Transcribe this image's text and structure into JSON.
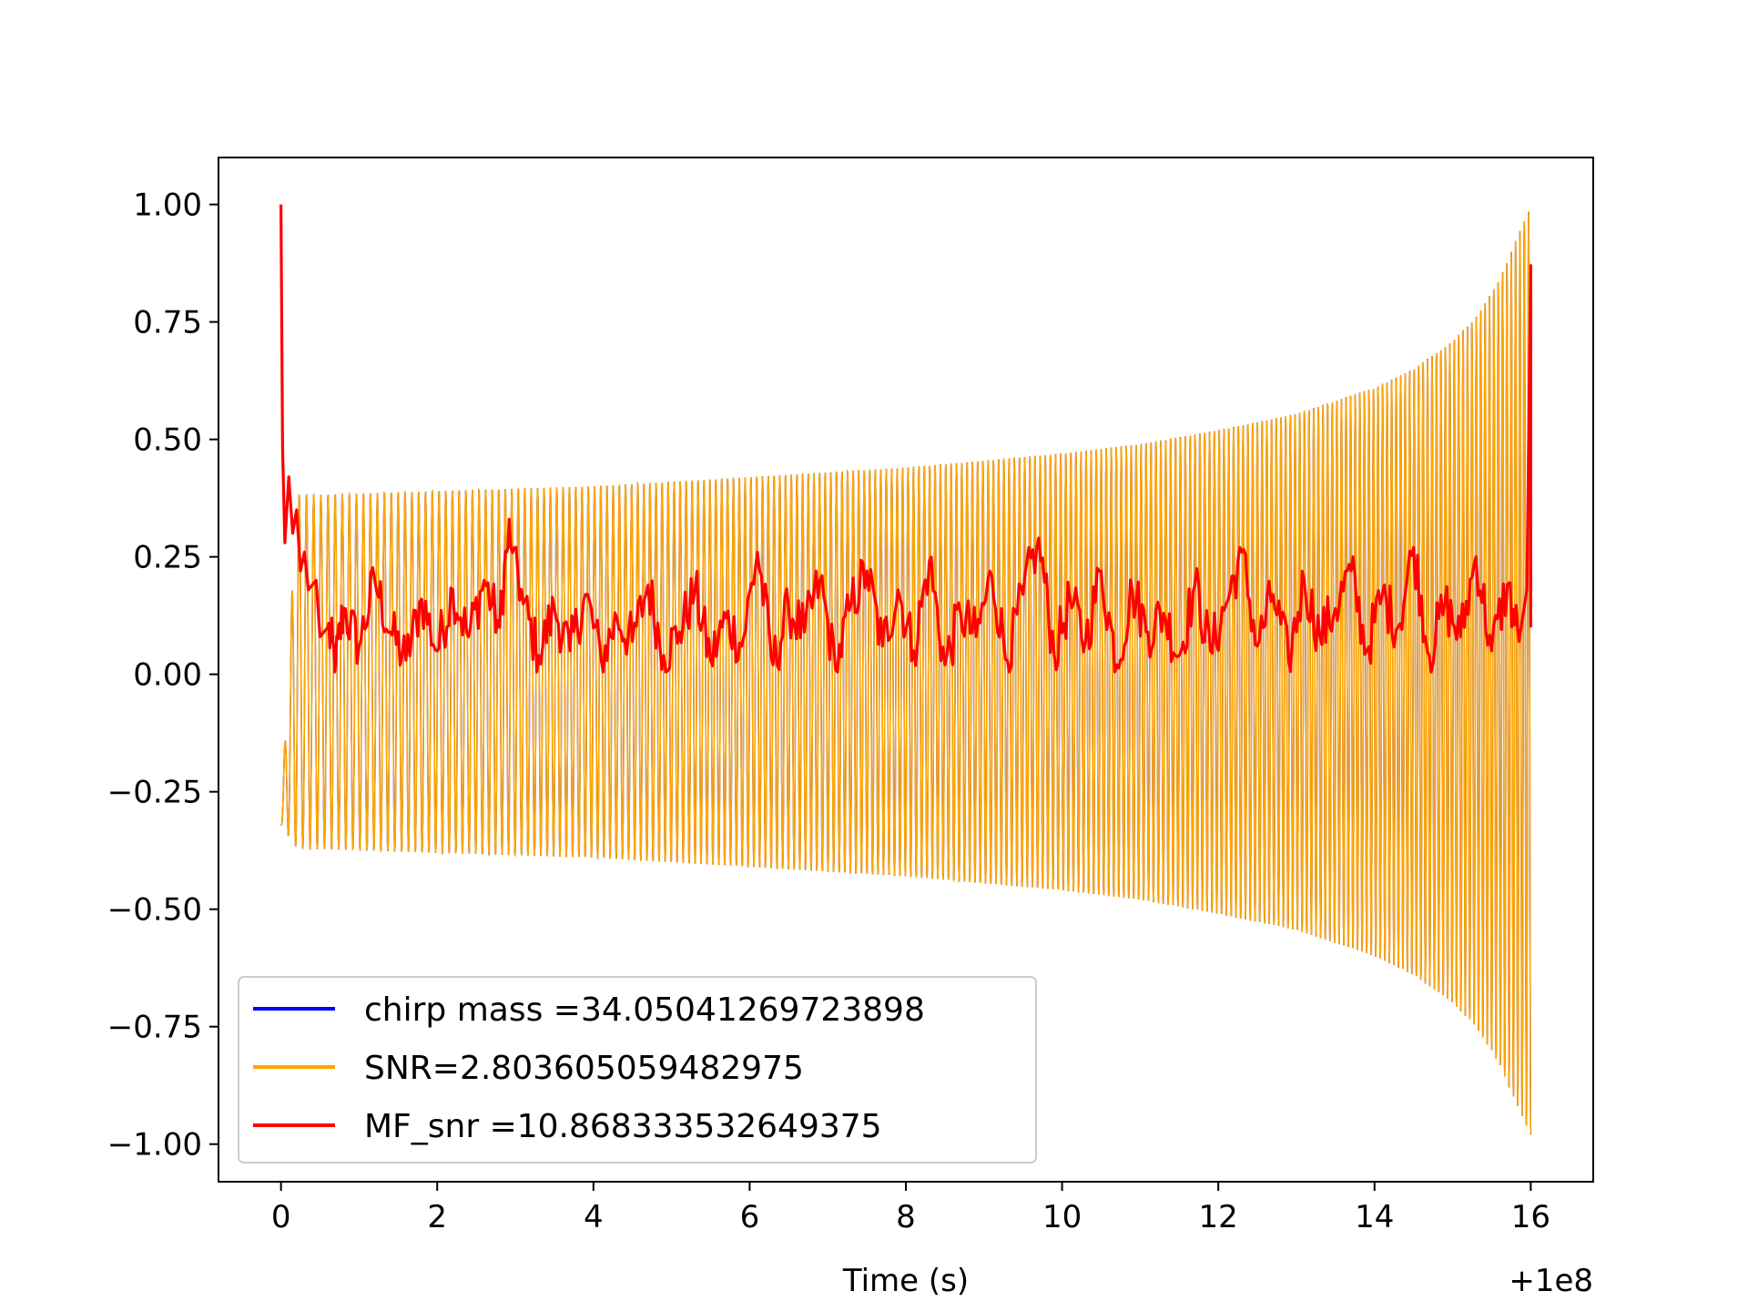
{
  "chart_data": {
    "type": "line",
    "title": "",
    "xlabel": "Time (s)",
    "ylabel": "",
    "x_offset_label": "+1e8",
    "xlim": [
      -0.8,
      16.8
    ],
    "ylim": [
      -1.08,
      1.1
    ],
    "xticks": [
      0,
      2,
      4,
      6,
      8,
      10,
      12,
      14,
      16
    ],
    "xtick_labels": [
      "0",
      "2",
      "4",
      "6",
      "8",
      "10",
      "12",
      "14",
      "16"
    ],
    "yticks": [
      1.0,
      0.75,
      0.5,
      0.25,
      0.0,
      -0.25,
      -0.5,
      -0.75,
      -1.0
    ],
    "ytick_labels": [
      "1.00",
      "0.75",
      "0.50",
      "0.25",
      "0.00",
      "−0.25",
      "−0.50",
      "−0.75",
      "−1.00"
    ],
    "legend_position": "lower-left",
    "series": [
      {
        "name": "chirp mass =34.05041269723898",
        "color": "#0000ff",
        "description": "chirp template (hidden beneath SNR series)"
      },
      {
        "name": "SNR=2.803605059482975",
        "color": "#ffa500",
        "description": "chirp oscillation; amplitude envelope in data units",
        "envelope": {
          "t": [
            0.0,
            0.2,
            2,
            4,
            6,
            8,
            10,
            11,
            12,
            13,
            14,
            14.5,
            15,
            15.3,
            15.6,
            15.8,
            16.0
          ],
          "upper": [
            -0.32,
            0.38,
            0.39,
            0.4,
            0.42,
            0.44,
            0.47,
            0.49,
            0.52,
            0.555,
            0.61,
            0.65,
            0.71,
            0.76,
            0.84,
            0.92,
            1.0
          ],
          "lower": [
            -0.32,
            -0.37,
            -0.38,
            -0.39,
            -0.41,
            -0.43,
            -0.46,
            -0.48,
            -0.51,
            -0.545,
            -0.6,
            -0.64,
            -0.7,
            -0.75,
            -0.83,
            -0.91,
            -0.98
          ]
        },
        "cycles": 230
      },
      {
        "name": "MF_snr =10.868333532649375",
        "color": "#ff0000",
        "description": "matched-filter SNR trace (normalized)",
        "points": [
          [
            0.0,
            1.0
          ],
          [
            0.02,
            0.48
          ],
          [
            0.05,
            0.28
          ],
          [
            0.1,
            0.42
          ],
          [
            0.15,
            0.3
          ],
          [
            0.2,
            0.35
          ],
          [
            0.25,
            0.22
          ],
          [
            0.3,
            0.26
          ],
          [
            0.35,
            0.18
          ],
          [
            0.45,
            0.2
          ],
          [
            0.5,
            0.08
          ],
          [
            0.6,
            0.1
          ],
          [
            0.7,
            0.02
          ],
          [
            0.8,
            0.14
          ],
          [
            1.0,
            0.06
          ],
          [
            1.2,
            0.2
          ],
          [
            1.4,
            0.09
          ],
          [
            1.6,
            0.03
          ],
          [
            1.8,
            0.16
          ],
          [
            2.0,
            0.05
          ],
          [
            2.2,
            0.18
          ],
          [
            2.4,
            0.08
          ],
          [
            2.6,
            0.2
          ],
          [
            2.8,
            0.1
          ],
          [
            2.92,
            0.33
          ],
          [
            3.1,
            0.15
          ],
          [
            3.3,
            0.04
          ],
          [
            3.5,
            0.14
          ],
          [
            3.7,
            0.05
          ],
          [
            3.9,
            0.17
          ],
          [
            4.1,
            0.03
          ],
          [
            4.3,
            0.12
          ],
          [
            4.5,
            0.07
          ],
          [
            4.7,
            0.19
          ],
          [
            4.9,
            0.04
          ],
          [
            5.1,
            0.09
          ],
          [
            5.3,
            0.18
          ],
          [
            5.5,
            0.03
          ],
          [
            5.7,
            0.12
          ],
          [
            5.9,
            0.06
          ],
          [
            6.1,
            0.26
          ],
          [
            6.3,
            0.02
          ],
          [
            6.5,
            0.14
          ],
          [
            6.7,
            0.09
          ],
          [
            6.9,
            0.2
          ],
          [
            7.1,
            0.01
          ],
          [
            7.3,
            0.15
          ],
          [
            7.5,
            0.22
          ],
          [
            7.7,
            0.06
          ],
          [
            7.9,
            0.18
          ],
          [
            8.1,
            0.05
          ],
          [
            8.3,
            0.24
          ],
          [
            8.5,
            0.02
          ],
          [
            8.7,
            0.13
          ],
          [
            8.9,
            0.08
          ],
          [
            9.1,
            0.21
          ],
          [
            9.3,
            0.03
          ],
          [
            9.5,
            0.17
          ],
          [
            9.7,
            0.29
          ],
          [
            9.9,
            0.04
          ],
          [
            10.1,
            0.16
          ],
          [
            10.3,
            0.07
          ],
          [
            10.5,
            0.22
          ],
          [
            10.7,
            0.02
          ],
          [
            10.9,
            0.18
          ],
          [
            11.1,
            0.09
          ],
          [
            11.3,
            0.13
          ],
          [
            11.5,
            0.04
          ],
          [
            11.7,
            0.19
          ],
          [
            11.9,
            0.05
          ],
          [
            12.1,
            0.15
          ],
          [
            12.3,
            0.26
          ],
          [
            12.5,
            0.06
          ],
          [
            12.7,
            0.17
          ],
          [
            12.9,
            0.03
          ],
          [
            13.1,
            0.2
          ],
          [
            13.3,
            0.08
          ],
          [
            13.5,
            0.14
          ],
          [
            13.7,
            0.22
          ],
          [
            13.9,
            0.05
          ],
          [
            14.1,
            0.17
          ],
          [
            14.3,
            0.1
          ],
          [
            14.5,
            0.27
          ],
          [
            14.7,
            0.04
          ],
          [
            14.9,
            0.15
          ],
          [
            15.1,
            0.08
          ],
          [
            15.3,
            0.25
          ],
          [
            15.5,
            0.05
          ],
          [
            15.7,
            0.19
          ],
          [
            15.85,
            0.07
          ],
          [
            15.95,
            0.18
          ],
          [
            16.0,
            0.87
          ]
        ]
      }
    ]
  }
}
